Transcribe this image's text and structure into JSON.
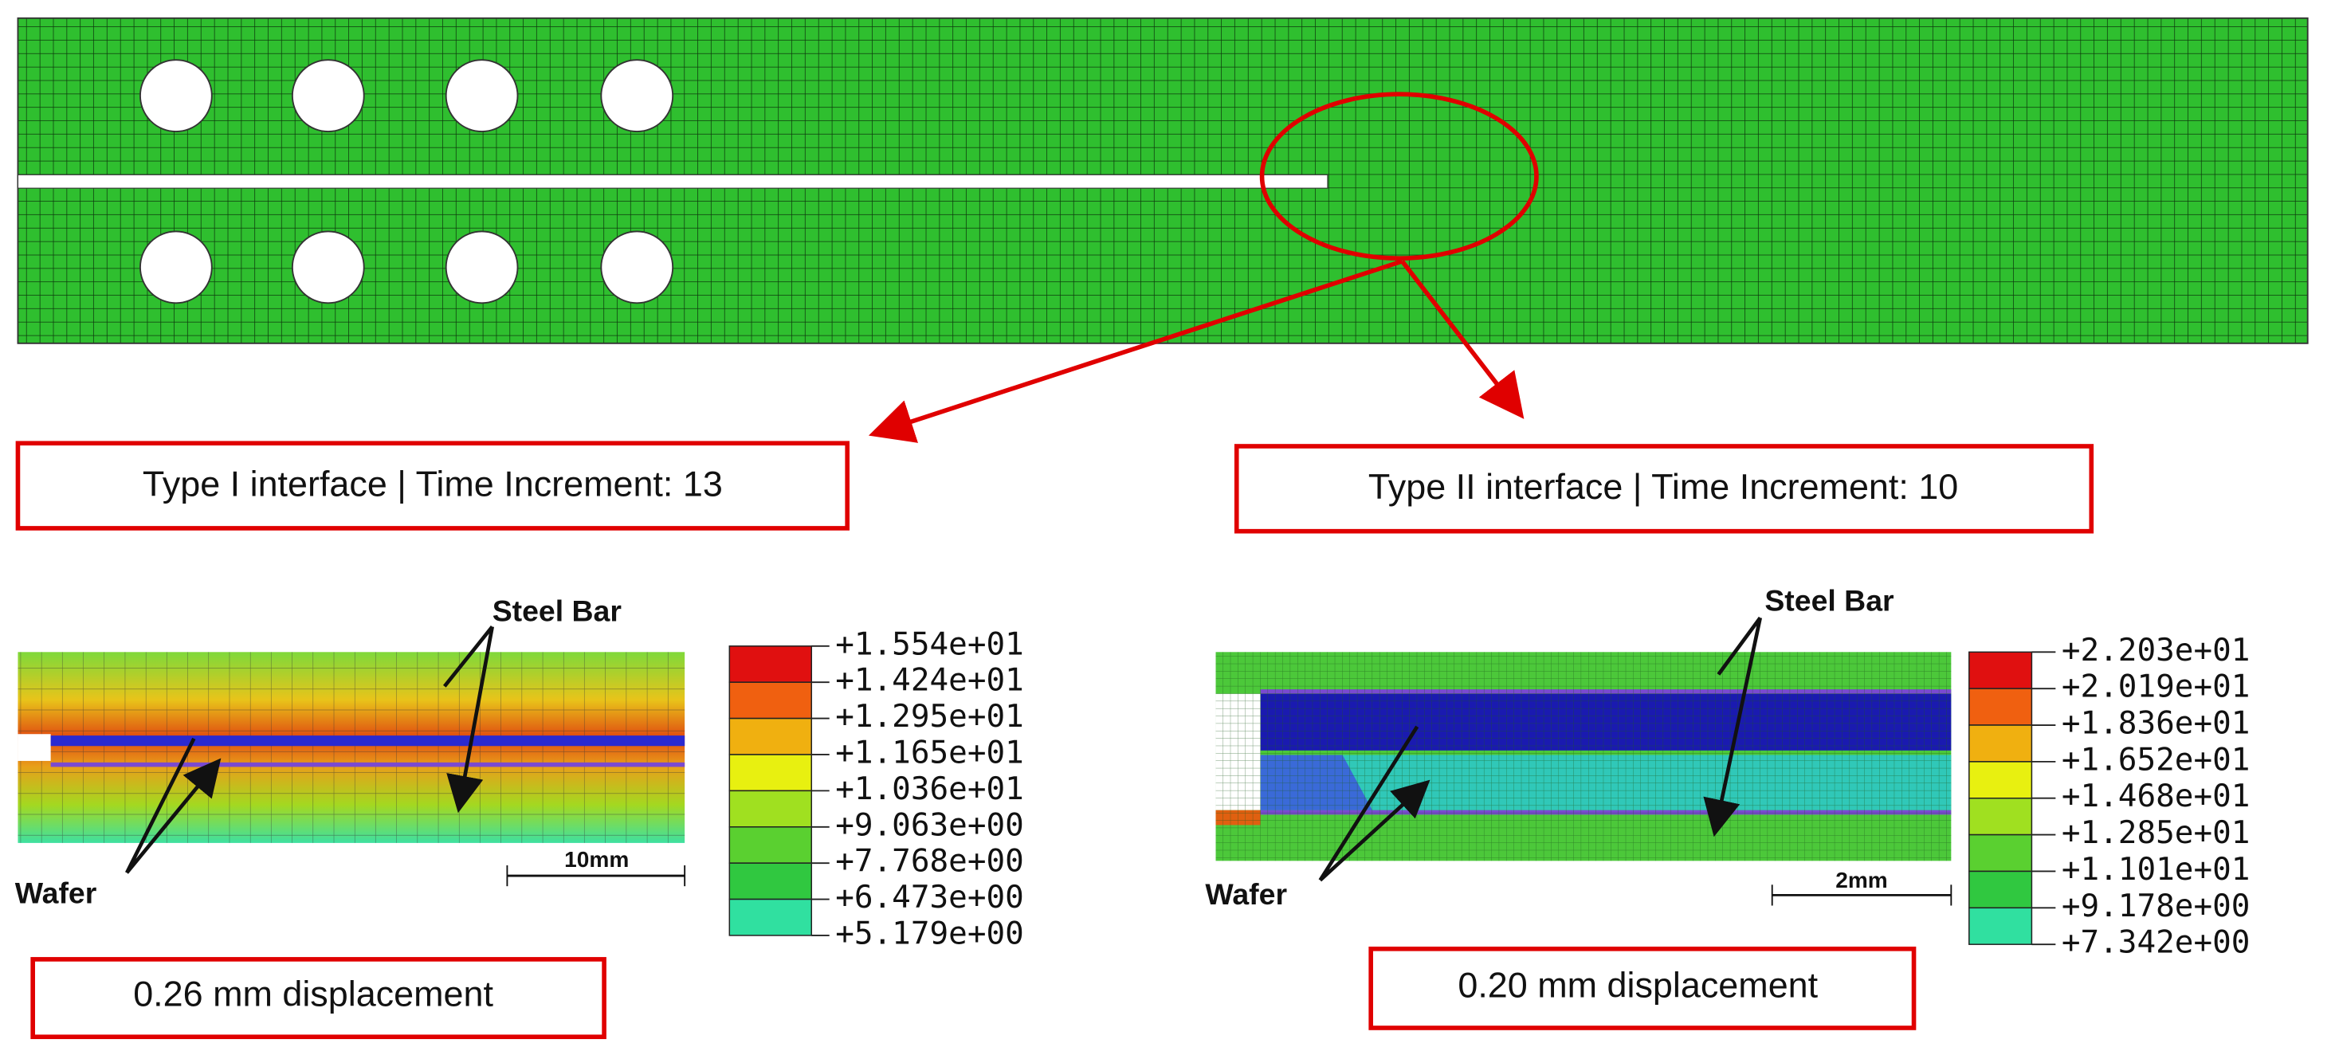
{
  "top_panel": {
    "callouts": [
      "Type I interface | Time Increment: 13",
      "Type II interface | Time Increment: 10"
    ]
  },
  "left_panel": {
    "label_steel": "Steel Bar",
    "label_wafer": "Wafer",
    "scale": "10mm",
    "displacement": "0.26 mm displacement",
    "legend": [
      "+1.554e+01",
      "+1.424e+01",
      "+1.295e+01",
      "+1.165e+01",
      "+1.036e+01",
      "+9.063e+00",
      "+7.768e+00",
      "+6.473e+00",
      "+5.179e+00"
    ]
  },
  "right_panel": {
    "label_steel": "Steel Bar",
    "label_wafer": "Wafer",
    "scale": "2mm",
    "displacement": "0.20 mm displacement",
    "legend": [
      "+2.203e+01",
      "+2.019e+01",
      "+1.836e+01",
      "+1.652e+01",
      "+1.468e+01",
      "+1.285e+01",
      "+1.101e+01",
      "+9.178e+00",
      "+7.342e+00"
    ]
  }
}
